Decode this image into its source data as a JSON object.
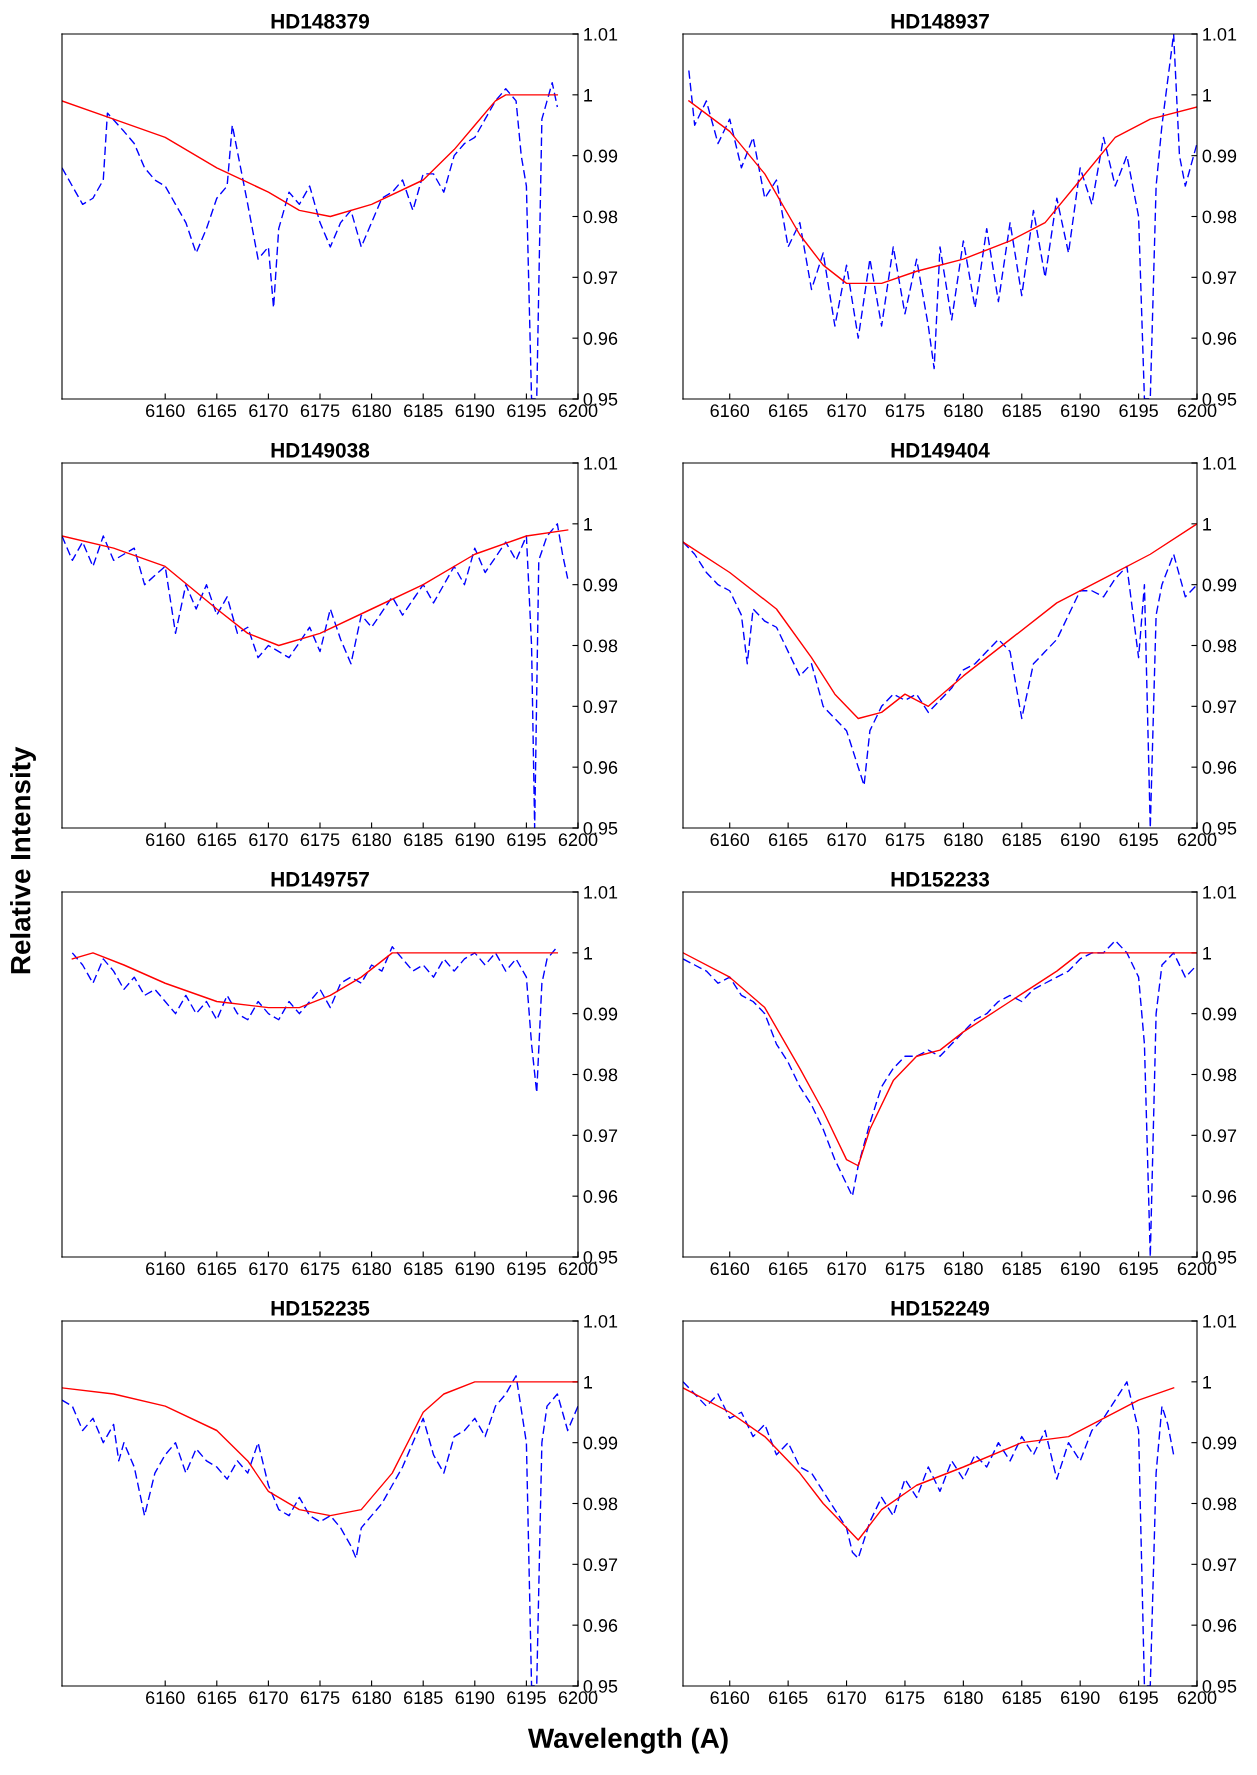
{
  "chart_data": [
    {
      "type": "line",
      "title": "HD148379",
      "xlim": [
        6150,
        6200
      ],
      "xticks": [
        6160,
        6165,
        6170,
        6175,
        6180,
        6185,
        6190,
        6195,
        6200
      ],
      "ylim": [
        0.95,
        1.01
      ],
      "yticks": [
        0.95,
        0.96,
        0.97,
        0.98,
        0.99,
        1,
        1.01
      ],
      "series": [
        {
          "color": "#0000ff",
          "line_style": "dashed",
          "x": [
            6150,
            6151,
            6152,
            6153,
            6154,
            6154.4,
            6156,
            6157,
            6158,
            6159,
            6160,
            6161,
            6162,
            6163,
            6164,
            6165,
            6166,
            6166.5,
            6168,
            6169,
            6170,
            6170.5,
            6171,
            6172,
            6173,
            6174,
            6175,
            6176,
            6177,
            6178,
            6179,
            6180,
            6181,
            6182,
            6183,
            6184,
            6185,
            6186,
            6187,
            6188,
            6189,
            6190,
            6191,
            6192,
            6193,
            6194,
            6194.5,
            6195,
            6195.5,
            6196,
            6196.5,
            6197,
            6197.5,
            6198
          ],
          "values": [
            0.988,
            0.985,
            0.982,
            0.983,
            0.986,
            0.997,
            0.994,
            0.992,
            0.988,
            0.986,
            0.985,
            0.982,
            0.979,
            0.974,
            0.978,
            0.983,
            0.985,
            0.995,
            0.982,
            0.973,
            0.975,
            0.965,
            0.978,
            0.984,
            0.982,
            0.985,
            0.979,
            0.975,
            0.979,
            0.981,
            0.975,
            0.979,
            0.983,
            0.984,
            0.986,
            0.981,
            0.987,
            0.987,
            0.984,
            0.99,
            0.992,
            0.993,
            0.996,
            0.999,
            1.001,
            0.999,
            0.99,
            0.985,
            0.95,
            0.95,
            0.996,
            0.999,
            1.002,
            0.998
          ]
        },
        {
          "color": "#ff0000",
          "line_style": "solid",
          "x": [
            6150,
            6155,
            6160,
            6165,
            6170,
            6173,
            6176,
            6180,
            6185,
            6188,
            6190,
            6192,
            6193,
            6198
          ],
          "values": [
            0.999,
            0.996,
            0.993,
            0.988,
            0.984,
            0.981,
            0.98,
            0.982,
            0.986,
            0.991,
            0.995,
            0.999,
            1,
            1
          ]
        }
      ]
    },
    {
      "type": "line",
      "title": "HD148937",
      "xlim": [
        6156,
        6200
      ],
      "xticks": [
        6160,
        6165,
        6170,
        6175,
        6180,
        6185,
        6190,
        6195,
        6200
      ],
      "ylim": [
        0.95,
        1.01
      ],
      "yticks": [
        0.95,
        0.96,
        0.97,
        0.98,
        0.99,
        1,
        1.01
      ],
      "series": [
        {
          "color": "#0000ff",
          "line_style": "dashed",
          "x": [
            6156.5,
            6157,
            6158,
            6159,
            6160,
            6161,
            6162,
            6163,
            6164,
            6165,
            6166,
            6167,
            6168,
            6169,
            6170,
            6171,
            6172,
            6173,
            6174,
            6175,
            6176,
            6177,
            6177.5,
            6178,
            6179,
            6180,
            6181,
            6182,
            6183,
            6184,
            6185,
            6186,
            6187,
            6188,
            6189,
            6190,
            6191,
            6192,
            6193,
            6194,
            6195,
            6195.5,
            6196,
            6196.5,
            6197,
            6198,
            6198.5,
            6199,
            6200
          ],
          "values": [
            1.004,
            0.995,
            0.999,
            0.992,
            0.996,
            0.988,
            0.993,
            0.983,
            0.986,
            0.975,
            0.979,
            0.968,
            0.974,
            0.962,
            0.972,
            0.96,
            0.973,
            0.962,
            0.975,
            0.964,
            0.973,
            0.962,
            0.955,
            0.975,
            0.963,
            0.976,
            0.965,
            0.978,
            0.966,
            0.979,
            0.967,
            0.981,
            0.97,
            0.983,
            0.974,
            0.988,
            0.982,
            0.993,
            0.985,
            0.99,
            0.98,
            0.95,
            0.95,
            0.985,
            0.995,
            1.01,
            0.99,
            0.985,
            0.992
          ]
        },
        {
          "color": "#ff0000",
          "line_style": "solid",
          "x": [
            6156.5,
            6160,
            6163,
            6166,
            6168,
            6170,
            6173,
            6176,
            6180,
            6184,
            6187,
            6190,
            6193,
            6196,
            6200
          ],
          "values": [
            0.999,
            0.994,
            0.987,
            0.977,
            0.972,
            0.969,
            0.969,
            0.971,
            0.973,
            0.976,
            0.979,
            0.986,
            0.993,
            0.996,
            0.998
          ]
        }
      ]
    },
    {
      "type": "line",
      "title": "HD149038",
      "ylabel": "Relative Intensity",
      "xlim": [
        6150,
        6200
      ],
      "xticks": [
        6160,
        6165,
        6170,
        6175,
        6180,
        6185,
        6190,
        6195,
        6200
      ],
      "ylim": [
        0.95,
        1.01
      ],
      "yticks": [
        0.95,
        0.96,
        0.97,
        0.98,
        0.99,
        1,
        1.01
      ],
      "series": [
        {
          "color": "#0000ff",
          "line_style": "dashed",
          "x": [
            6150,
            6151,
            6152,
            6153,
            6154,
            6155,
            6157,
            6158,
            6160,
            6161,
            6162,
            6163,
            6164,
            6165,
            6166,
            6167,
            6168,
            6169,
            6170,
            6172,
            6174,
            6175,
            6176,
            6177,
            6178,
            6179,
            6180,
            6182,
            6183,
            6185,
            6186,
            6188,
            6189,
            6190,
            6191,
            6193,
            6194,
            6195,
            6195.5,
            6195.8,
            6196.2,
            6197,
            6198,
            6198.5,
            6199
          ],
          "values": [
            0.998,
            0.994,
            0.997,
            0.993,
            0.998,
            0.994,
            0.996,
            0.99,
            0.993,
            0.982,
            0.99,
            0.986,
            0.99,
            0.985,
            0.988,
            0.982,
            0.983,
            0.978,
            0.98,
            0.978,
            0.983,
            0.979,
            0.986,
            0.981,
            0.977,
            0.985,
            0.983,
            0.988,
            0.985,
            0.99,
            0.987,
            0.993,
            0.99,
            0.996,
            0.992,
            0.997,
            0.994,
            0.998,
            0.98,
            0.95,
            0.994,
            0.998,
            1,
            0.995,
            0.991
          ]
        },
        {
          "color": "#ff0000",
          "line_style": "solid",
          "x": [
            6150,
            6155,
            6160,
            6165,
            6168,
            6171,
            6175,
            6180,
            6185,
            6190,
            6195,
            6199
          ],
          "values": [
            0.998,
            0.996,
            0.993,
            0.986,
            0.982,
            0.98,
            0.982,
            0.986,
            0.99,
            0.995,
            0.998,
            0.999
          ]
        }
      ]
    },
    {
      "type": "line",
      "title": "HD149404",
      "xlim": [
        6156,
        6200
      ],
      "xticks": [
        6160,
        6165,
        6170,
        6175,
        6180,
        6185,
        6190,
        6195,
        6200
      ],
      "ylim": [
        0.95,
        1.01
      ],
      "yticks": [
        0.95,
        0.96,
        0.97,
        0.98,
        0.99,
        1,
        1.01
      ],
      "series": [
        {
          "color": "#0000ff",
          "line_style": "dashed",
          "x": [
            6156,
            6157,
            6158,
            6159,
            6160,
            6161,
            6161.5,
            6162,
            6163,
            6164,
            6165,
            6166,
            6167,
            6168,
            6169,
            6170,
            6171,
            6171.5,
            6172,
            6173,
            6174,
            6175,
            6176,
            6177,
            6178,
            6179,
            6180,
            6181,
            6182,
            6183,
            6184,
            6185,
            6186,
            6187,
            6188,
            6189,
            6190,
            6191,
            6192,
            6193,
            6194,
            6195,
            6195.5,
            6196,
            6196.5,
            6197,
            6198,
            6199,
            6200
          ],
          "values": [
            0.997,
            0.995,
            0.992,
            0.99,
            0.989,
            0.985,
            0.977,
            0.986,
            0.984,
            0.983,
            0.979,
            0.975,
            0.977,
            0.97,
            0.968,
            0.966,
            0.96,
            0.957,
            0.966,
            0.97,
            0.972,
            0.971,
            0.972,
            0.969,
            0.971,
            0.973,
            0.976,
            0.977,
            0.979,
            0.981,
            0.979,
            0.968,
            0.977,
            0.979,
            0.981,
            0.985,
            0.989,
            0.989,
            0.988,
            0.991,
            0.993,
            0.978,
            0.99,
            0.95,
            0.985,
            0.99,
            0.995,
            0.988,
            0.99
          ]
        },
        {
          "color": "#ff0000",
          "line_style": "solid",
          "x": [
            6156,
            6160,
            6164,
            6167,
            6169,
            6171,
            6173,
            6175,
            6177,
            6180,
            6184,
            6188,
            6192,
            6196,
            6200
          ],
          "values": [
            0.997,
            0.992,
            0.986,
            0.978,
            0.972,
            0.968,
            0.969,
            0.972,
            0.97,
            0.975,
            0.981,
            0.987,
            0.991,
            0.995,
            1
          ]
        }
      ]
    },
    {
      "type": "line",
      "title": "HD149757",
      "xlim": [
        6150,
        6200
      ],
      "xticks": [
        6160,
        6165,
        6170,
        6175,
        6180,
        6185,
        6190,
        6195,
        6200
      ],
      "ylim": [
        0.95,
        1.01
      ],
      "yticks": [
        0.95,
        0.96,
        0.97,
        0.98,
        0.99,
        1,
        1.01
      ],
      "series": [
        {
          "color": "#0000ff",
          "line_style": "dashed",
          "x": [
            6151,
            6152,
            6153,
            6154,
            6155,
            6156,
            6157,
            6158,
            6159,
            6160,
            6161,
            6162,
            6163,
            6164,
            6165,
            6166,
            6167,
            6168,
            6169,
            6170,
            6171,
            6172,
            6173,
            6174,
            6175,
            6176,
            6177,
            6178,
            6179,
            6180,
            6181,
            6182,
            6183,
            6184,
            6185,
            6186,
            6187,
            6188,
            6189,
            6190,
            6191,
            6192,
            6193,
            6194,
            6195,
            6195.5,
            6196,
            6196.5,
            6197,
            6198
          ],
          "values": [
            1,
            0.998,
            0.995,
            0.999,
            0.997,
            0.994,
            0.996,
            0.993,
            0.994,
            0.992,
            0.99,
            0.993,
            0.99,
            0.992,
            0.989,
            0.993,
            0.99,
            0.989,
            0.992,
            0.99,
            0.989,
            0.992,
            0.99,
            0.992,
            0.994,
            0.991,
            0.995,
            0.996,
            0.995,
            0.998,
            0.997,
            1.001,
            0.999,
            0.997,
            0.998,
            0.996,
            0.999,
            0.997,
            0.999,
            1,
            0.998,
            1,
            0.997,
            0.999,
            0.996,
            0.985,
            0.977,
            0.995,
            0.999,
            1.001
          ]
        },
        {
          "color": "#ff0000",
          "line_style": "solid",
          "x": [
            6151,
            6153,
            6156,
            6160,
            6165,
            6170,
            6173,
            6176,
            6179,
            6182,
            6185,
            6198
          ],
          "values": [
            0.999,
            1,
            0.998,
            0.995,
            0.992,
            0.991,
            0.991,
            0.993,
            0.996,
            1,
            1,
            1
          ]
        }
      ]
    },
    {
      "type": "line",
      "title": "HD152233",
      "xlim": [
        6156,
        6200
      ],
      "xticks": [
        6160,
        6165,
        6170,
        6175,
        6180,
        6185,
        6190,
        6195,
        6200
      ],
      "ylim": [
        0.95,
        1.01
      ],
      "yticks": [
        0.95,
        0.96,
        0.97,
        0.98,
        0.99,
        1,
        1.01
      ],
      "series": [
        {
          "color": "#0000ff",
          "line_style": "dashed",
          "x": [
            6156,
            6157,
            6158,
            6159,
            6160,
            6161,
            6162,
            6163,
            6164,
            6165,
            6166,
            6167,
            6168,
            6169,
            6170,
            6170.5,
            6171,
            6172,
            6173,
            6174,
            6175,
            6176,
            6177,
            6178,
            6179,
            6180,
            6181,
            6182,
            6183,
            6184,
            6185,
            6186,
            6187,
            6188,
            6189,
            6190,
            6191,
            6192,
            6193,
            6194,
            6195,
            6195.5,
            6196,
            6196.5,
            6197,
            6198,
            6199,
            6200
          ],
          "values": [
            0.999,
            0.998,
            0.997,
            0.995,
            0.996,
            0.993,
            0.992,
            0.99,
            0.985,
            0.982,
            0.978,
            0.975,
            0.971,
            0.966,
            0.962,
            0.96,
            0.965,
            0.972,
            0.978,
            0.981,
            0.983,
            0.983,
            0.984,
            0.983,
            0.985,
            0.987,
            0.989,
            0.99,
            0.992,
            0.993,
            0.992,
            0.994,
            0.995,
            0.996,
            0.997,
            0.999,
            1,
            1,
            1.002,
            1,
            0.996,
            0.985,
            0.95,
            0.99,
            0.998,
            1,
            0.996,
            0.998
          ]
        },
        {
          "color": "#ff0000",
          "line_style": "solid",
          "x": [
            6156,
            6160,
            6163,
            6166,
            6168,
            6170,
            6171,
            6172,
            6174,
            6176,
            6178,
            6180,
            6184,
            6188,
            6190,
            6200
          ],
          "values": [
            1,
            0.996,
            0.991,
            0.981,
            0.974,
            0.966,
            0.965,
            0.971,
            0.979,
            0.983,
            0.984,
            0.987,
            0.992,
            0.997,
            1,
            1
          ]
        }
      ]
    },
    {
      "type": "line",
      "title": "HD152235",
      "xlabel": "Wavelength (A)",
      "xlim": [
        6150,
        6200
      ],
      "xticks": [
        6160,
        6165,
        6170,
        6175,
        6180,
        6185,
        6190,
        6195,
        6200
      ],
      "ylim": [
        0.95,
        1.01
      ],
      "yticks": [
        0.95,
        0.96,
        0.97,
        0.98,
        0.99,
        1,
        1.01
      ],
      "series": [
        {
          "color": "#0000ff",
          "line_style": "dashed",
          "x": [
            6150,
            6151,
            6152,
            6153,
            6154,
            6155,
            6155.5,
            6156,
            6157,
            6158,
            6159,
            6160,
            6161,
            6162,
            6163,
            6164,
            6165,
            6166,
            6167,
            6168,
            6169,
            6170,
            6171,
            6172,
            6173,
            6174,
            6175,
            6176,
            6177,
            6178,
            6178.5,
            6179,
            6180,
            6181,
            6182,
            6183,
            6184,
            6185,
            6186,
            6187,
            6188,
            6189,
            6190,
            6191,
            6192,
            6193,
            6194,
            6195,
            6195.5,
            6196,
            6196.5,
            6197,
            6198,
            6199,
            6200
          ],
          "values": [
            0.997,
            0.996,
            0.992,
            0.994,
            0.99,
            0.993,
            0.987,
            0.99,
            0.986,
            0.978,
            0.985,
            0.988,
            0.99,
            0.985,
            0.989,
            0.987,
            0.986,
            0.984,
            0.987,
            0.985,
            0.99,
            0.983,
            0.979,
            0.978,
            0.981,
            0.978,
            0.977,
            0.978,
            0.976,
            0.973,
            0.971,
            0.976,
            0.978,
            0.98,
            0.983,
            0.986,
            0.99,
            0.994,
            0.988,
            0.985,
            0.991,
            0.992,
            0.994,
            0.991,
            0.996,
            0.998,
            1.001,
            0.99,
            0.95,
            0.95,
            0.99,
            0.996,
            0.998,
            0.992,
            0.996
          ]
        },
        {
          "color": "#ff0000",
          "line_style": "solid",
          "x": [
            6150,
            6155,
            6160,
            6165,
            6168,
            6170,
            6173,
            6176,
            6179,
            6182,
            6185,
            6187,
            6190,
            6200
          ],
          "values": [
            0.999,
            0.998,
            0.996,
            0.992,
            0.987,
            0.982,
            0.979,
            0.978,
            0.979,
            0.985,
            0.995,
            0.998,
            1,
            1
          ]
        }
      ]
    },
    {
      "type": "line",
      "title": "HD152249",
      "xlim": [
        6156,
        6200
      ],
      "xticks": [
        6160,
        6165,
        6170,
        6175,
        6180,
        6185,
        6190,
        6195,
        6200
      ],
      "ylim": [
        0.95,
        1.01
      ],
      "yticks": [
        0.95,
        0.96,
        0.97,
        0.98,
        0.99,
        1,
        1.01
      ],
      "series": [
        {
          "color": "#0000ff",
          "line_style": "dashed",
          "x": [
            6156,
            6157,
            6158,
            6159,
            6160,
            6161,
            6162,
            6163,
            6164,
            6165,
            6166,
            6167,
            6168,
            6169,
            6170,
            6170.5,
            6171,
            6172,
            6173,
            6174,
            6175,
            6176,
            6177,
            6178,
            6179,
            6180,
            6181,
            6182,
            6183,
            6184,
            6185,
            6186,
            6187,
            6188,
            6189,
            6190,
            6191,
            6192,
            6193,
            6194,
            6195,
            6195.5,
            6196,
            6196.5,
            6197,
            6197.5,
            6198
          ],
          "values": [
            1,
            0.998,
            0.996,
            0.998,
            0.994,
            0.995,
            0.991,
            0.993,
            0.988,
            0.99,
            0.986,
            0.985,
            0.982,
            0.979,
            0.976,
            0.972,
            0.971,
            0.977,
            0.981,
            0.978,
            0.984,
            0.981,
            0.986,
            0.982,
            0.987,
            0.984,
            0.988,
            0.986,
            0.99,
            0.987,
            0.991,
            0.988,
            0.992,
            0.984,
            0.99,
            0.987,
            0.992,
            0.994,
            0.997,
            1,
            0.992,
            0.95,
            0.95,
            0.985,
            0.996,
            0.993,
            0.988
          ]
        },
        {
          "color": "#ff0000",
          "line_style": "solid",
          "x": [
            6156,
            6160,
            6163,
            6166,
            6168,
            6170,
            6171,
            6173,
            6176,
            6180,
            6185,
            6189,
            6192,
            6195,
            6198
          ],
          "values": [
            0.999,
            0.995,
            0.991,
            0.985,
            0.98,
            0.976,
            0.974,
            0.979,
            0.983,
            0.986,
            0.99,
            0.991,
            0.994,
            0.997,
            0.999
          ]
        }
      ]
    }
  ]
}
